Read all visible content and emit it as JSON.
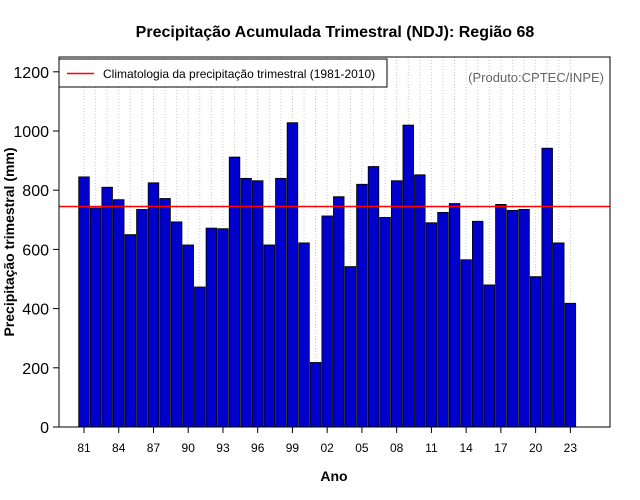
{
  "chart_data": {
    "type": "bar",
    "title": "Precipitação Acumulada Trimestral (NDJ): Região 68",
    "xlabel": "Ano",
    "ylabel": "Precipitação trimestral (mm)",
    "ylim": [
      0,
      1250
    ],
    "yticks": [
      0,
      200,
      400,
      600,
      800,
      1000,
      1200
    ],
    "x_tick_labels": [
      "81",
      "84",
      "87",
      "90",
      "93",
      "96",
      "99",
      "02",
      "05",
      "08",
      "11",
      "14",
      "17",
      "20",
      "23"
    ],
    "x_tick_every": 3,
    "grid": "vertical-dotted",
    "years": [
      1981,
      1982,
      1983,
      1984,
      1985,
      1986,
      1987,
      1988,
      1989,
      1990,
      1991,
      1992,
      1993,
      1994,
      1995,
      1996,
      1997,
      1998,
      1999,
      2000,
      2001,
      2002,
      2003,
      2004,
      2005,
      2006,
      2007,
      2008,
      2009,
      2010,
      2011,
      2012,
      2013,
      2014,
      2015,
      2016,
      2017,
      2018,
      2019,
      2020,
      2021,
      2022,
      2023
    ],
    "values": [
      845,
      740,
      810,
      768,
      650,
      735,
      825,
      772,
      693,
      615,
      473,
      672,
      670,
      912,
      840,
      832,
      615,
      840,
      1028,
      622,
      218,
      713,
      778,
      542,
      820,
      880,
      708,
      832,
      1020,
      852,
      690,
      725,
      755,
      565,
      695,
      480,
      752,
      732,
      735,
      508,
      942,
      622,
      418
    ],
    "bar_color": "#0000CC",
    "reference_line": {
      "value": 745,
      "color": "#FF0000",
      "label": "Climatologia da precipitação trimestral (1981-2010)"
    },
    "legend_position": "top-left",
    "source": "(Produto:CPTEC/INPE)"
  }
}
